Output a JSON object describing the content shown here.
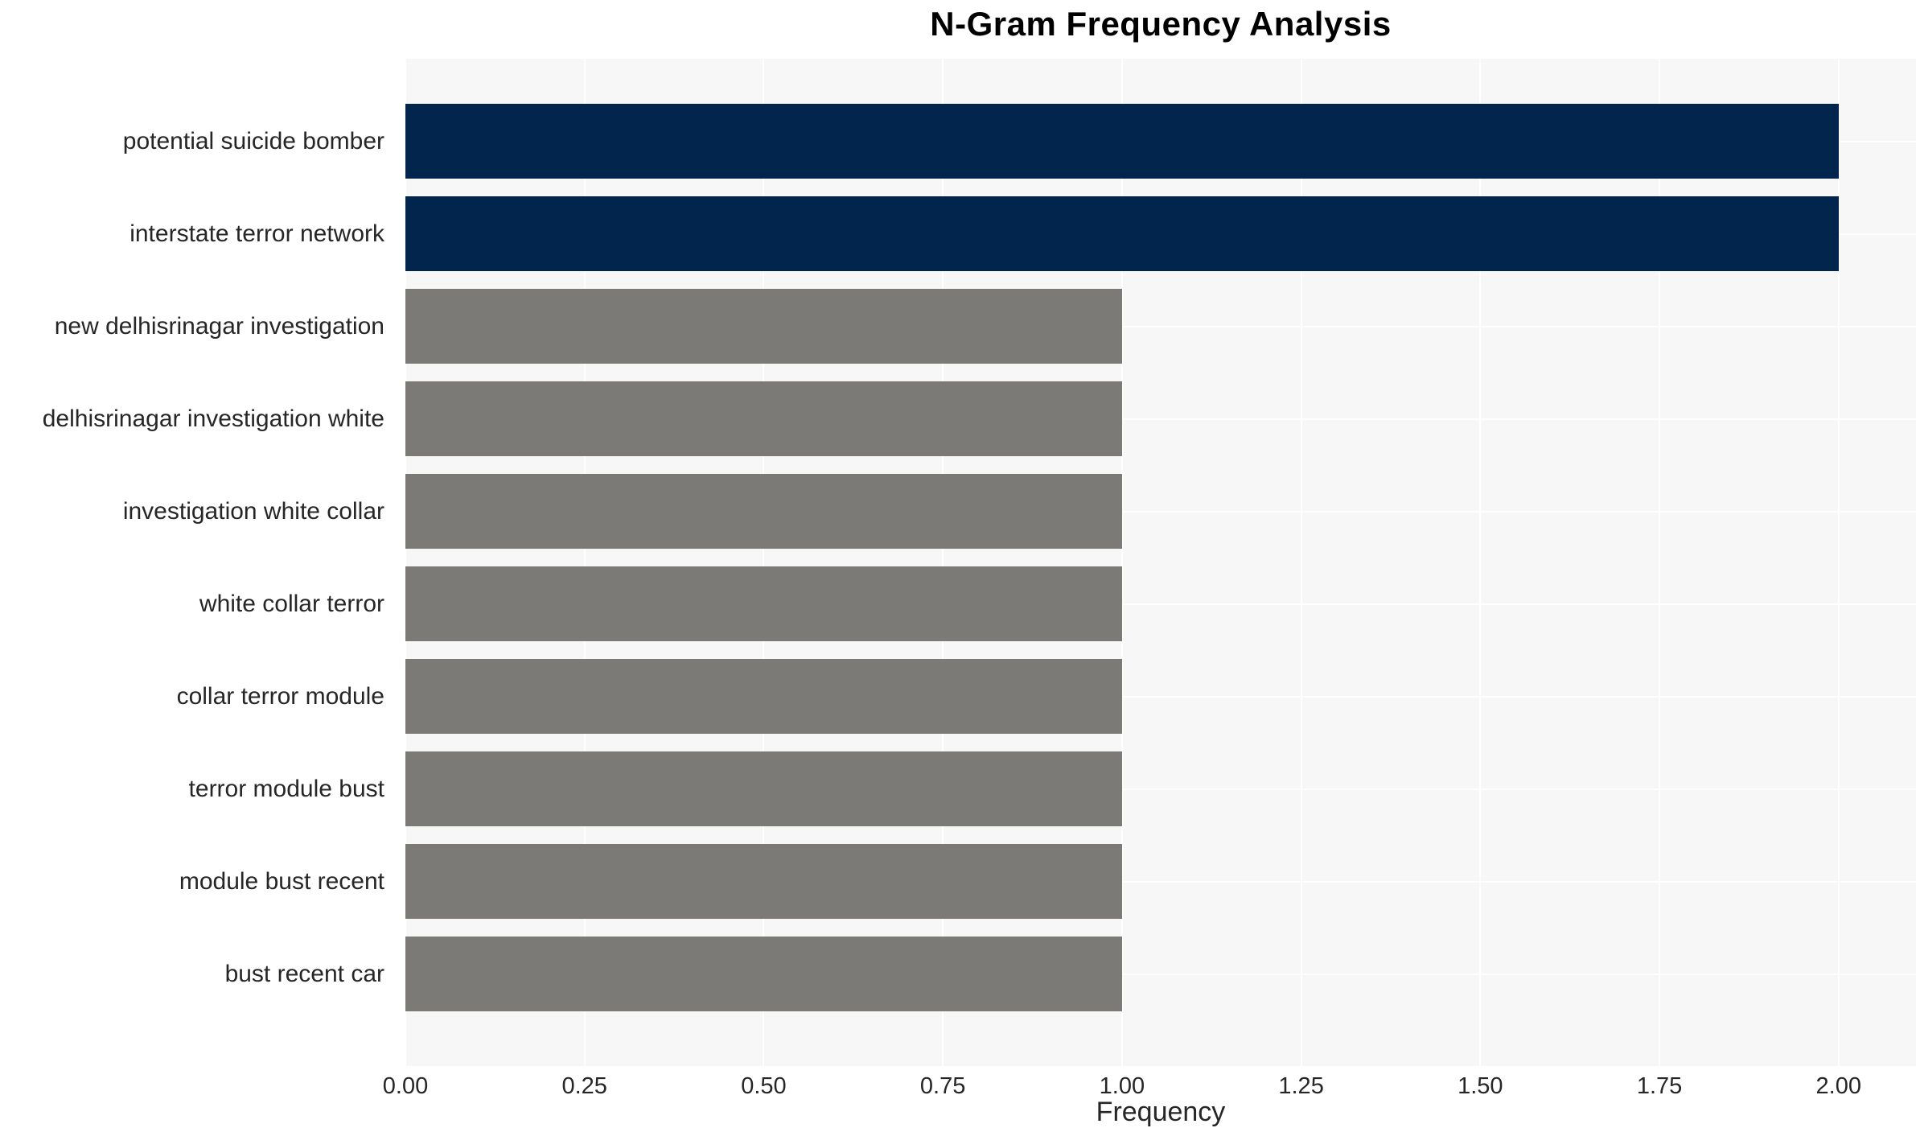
{
  "chart_data": {
    "type": "bar",
    "orientation": "horizontal",
    "title": "N-Gram Frequency Analysis",
    "xlabel": "Frequency",
    "ylabel": "",
    "categories": [
      "potential suicide bomber",
      "interstate terror network",
      "new delhisrinagar investigation",
      "delhisrinagar investigation white",
      "investigation white collar",
      "white collar terror",
      "collar terror module",
      "terror module bust",
      "module bust recent",
      "bust recent car"
    ],
    "values": [
      2,
      2,
      1,
      1,
      1,
      1,
      1,
      1,
      1,
      1
    ],
    "bar_colors": [
      "#02254d",
      "#02254d",
      "#7b7a77",
      "#7b7a77",
      "#7b7a77",
      "#7b7a77",
      "#7b7a77",
      "#7b7a77",
      "#7b7a77",
      "#7b7a77"
    ],
    "x_ticks": [
      "0.00",
      "0.25",
      "0.50",
      "0.75",
      "1.00",
      "1.25",
      "1.50",
      "1.75",
      "2.00"
    ],
    "x_tick_values": [
      0,
      0.25,
      0.5,
      0.75,
      1.0,
      1.25,
      1.5,
      1.75,
      2.0
    ],
    "xlim": [
      0,
      2.108
    ],
    "grid": "on",
    "legend": "none",
    "colors": {
      "panel_bg": "#f7f7f7",
      "grid": "#ffffff",
      "text": "#262626",
      "title": "#000000",
      "figure_bg": "#ffffff",
      "high_freq_bar": "#02254d",
      "low_freq_bar": "#7b7a77"
    }
  }
}
